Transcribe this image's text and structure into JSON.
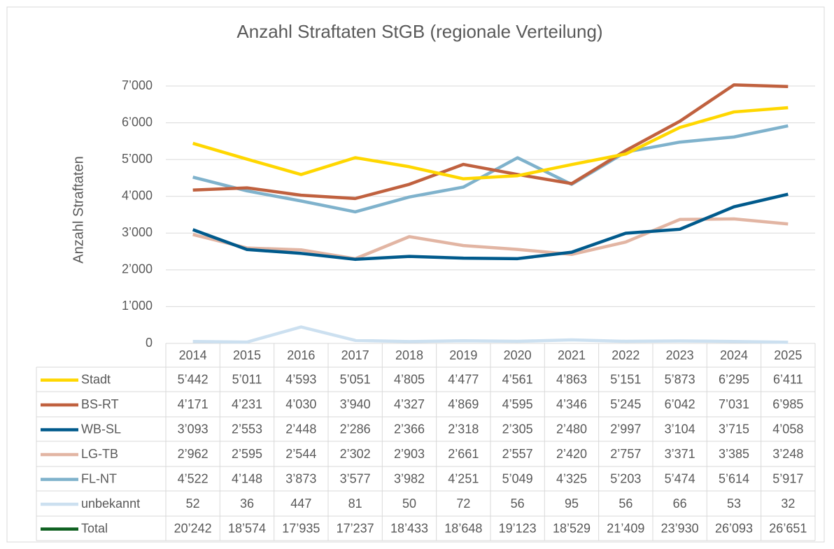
{
  "chart_data": {
    "type": "line",
    "title": "Anzahl Straftaten StGB (regionale Verteilung)",
    "y_label": "Anzahl Straftaten",
    "categories": [
      "2014",
      "2015",
      "2016",
      "2017",
      "2018",
      "2019",
      "2020",
      "2021",
      "2022",
      "2023",
      "2024",
      "2025"
    ],
    "ylim": [
      0,
      7000
    ],
    "yticks": [
      0,
      {
        "value": 1000,
        "label": "1’000"
      },
      {
        "value": 2000,
        "label": "2’000"
      },
      {
        "value": 3000,
        "label": "3’000"
      },
      {
        "value": 4000,
        "label": "4’000"
      },
      {
        "value": 5000,
        "label": "5’000"
      },
      {
        "value": 6000,
        "label": "6’000"
      },
      {
        "value": 7000,
        "label": "7’000"
      }
    ],
    "grid": true,
    "series": [
      {
        "name": "Stadt",
        "color": "#ffd700",
        "values": [
          5442,
          5011,
          4593,
          5051,
          4805,
          4477,
          4561,
          4863,
          5151,
          5873,
          6295,
          6411
        ],
        "value_labels": [
          "5’442",
          "5’011",
          "4’593",
          "5’051",
          "4’805",
          "4’477",
          "4’561",
          "4’863",
          "5’151",
          "5’873",
          "6’295",
          "6’411"
        ]
      },
      {
        "name": "BS-RT",
        "color": "#c0613f",
        "values": [
          4171,
          4231,
          4030,
          3940,
          4327,
          4869,
          4595,
          4346,
          5245,
          6042,
          7031,
          6985
        ],
        "value_labels": [
          "4’171",
          "4’231",
          "4’030",
          "3’940",
          "4’327",
          "4’869",
          "4’595",
          "4’346",
          "5’245",
          "6’042",
          "7’031",
          "6’985"
        ]
      },
      {
        "name": "WB-SL",
        "color": "#005a8c",
        "values": [
          3093,
          2553,
          2448,
          2286,
          2366,
          2318,
          2305,
          2480,
          2997,
          3104,
          3715,
          4058
        ],
        "value_labels": [
          "3’093",
          "2’553",
          "2’448",
          "2’286",
          "2’366",
          "2’318",
          "2’305",
          "2’480",
          "2’997",
          "3’104",
          "3’715",
          "4’058"
        ]
      },
      {
        "name": "LG-TB",
        "color": "#e2b5a3",
        "values": [
          2962,
          2595,
          2544,
          2302,
          2903,
          2661,
          2557,
          2420,
          2757,
          3371,
          3385,
          3248
        ],
        "value_labels": [
          "2’962",
          "2’595",
          "2’544",
          "2’302",
          "2’903",
          "2’661",
          "2’557",
          "2’420",
          "2’757",
          "3’371",
          "3’385",
          "3’248"
        ]
      },
      {
        "name": "FL-NT",
        "color": "#7fb2cc",
        "values": [
          4522,
          4148,
          3873,
          3577,
          3982,
          4251,
          5049,
          4325,
          5203,
          5474,
          5614,
          5917
        ],
        "value_labels": [
          "4’522",
          "4’148",
          "3’873",
          "3’577",
          "3’982",
          "4’251",
          "5’049",
          "4’325",
          "5’203",
          "5’474",
          "5’614",
          "5’917"
        ]
      },
      {
        "name": "unbekannt",
        "color": "#cce0f0",
        "values": [
          52,
          36,
          447,
          81,
          50,
          72,
          56,
          95,
          56,
          66,
          53,
          32
        ]
      },
      {
        "name": "Total",
        "color": "#0b5e1e",
        "values": [
          20242,
          18574,
          17935,
          17237,
          18433,
          18648,
          19123,
          18529,
          21409,
          23930,
          26093,
          26651
        ],
        "value_labels": [
          "20’242",
          "18’574",
          "17’935",
          "17’237",
          "18’433",
          "18’648",
          "19’123",
          "18’529",
          "21’409",
          "23’930",
          "26’093",
          "26’651"
        ]
      }
    ]
  }
}
